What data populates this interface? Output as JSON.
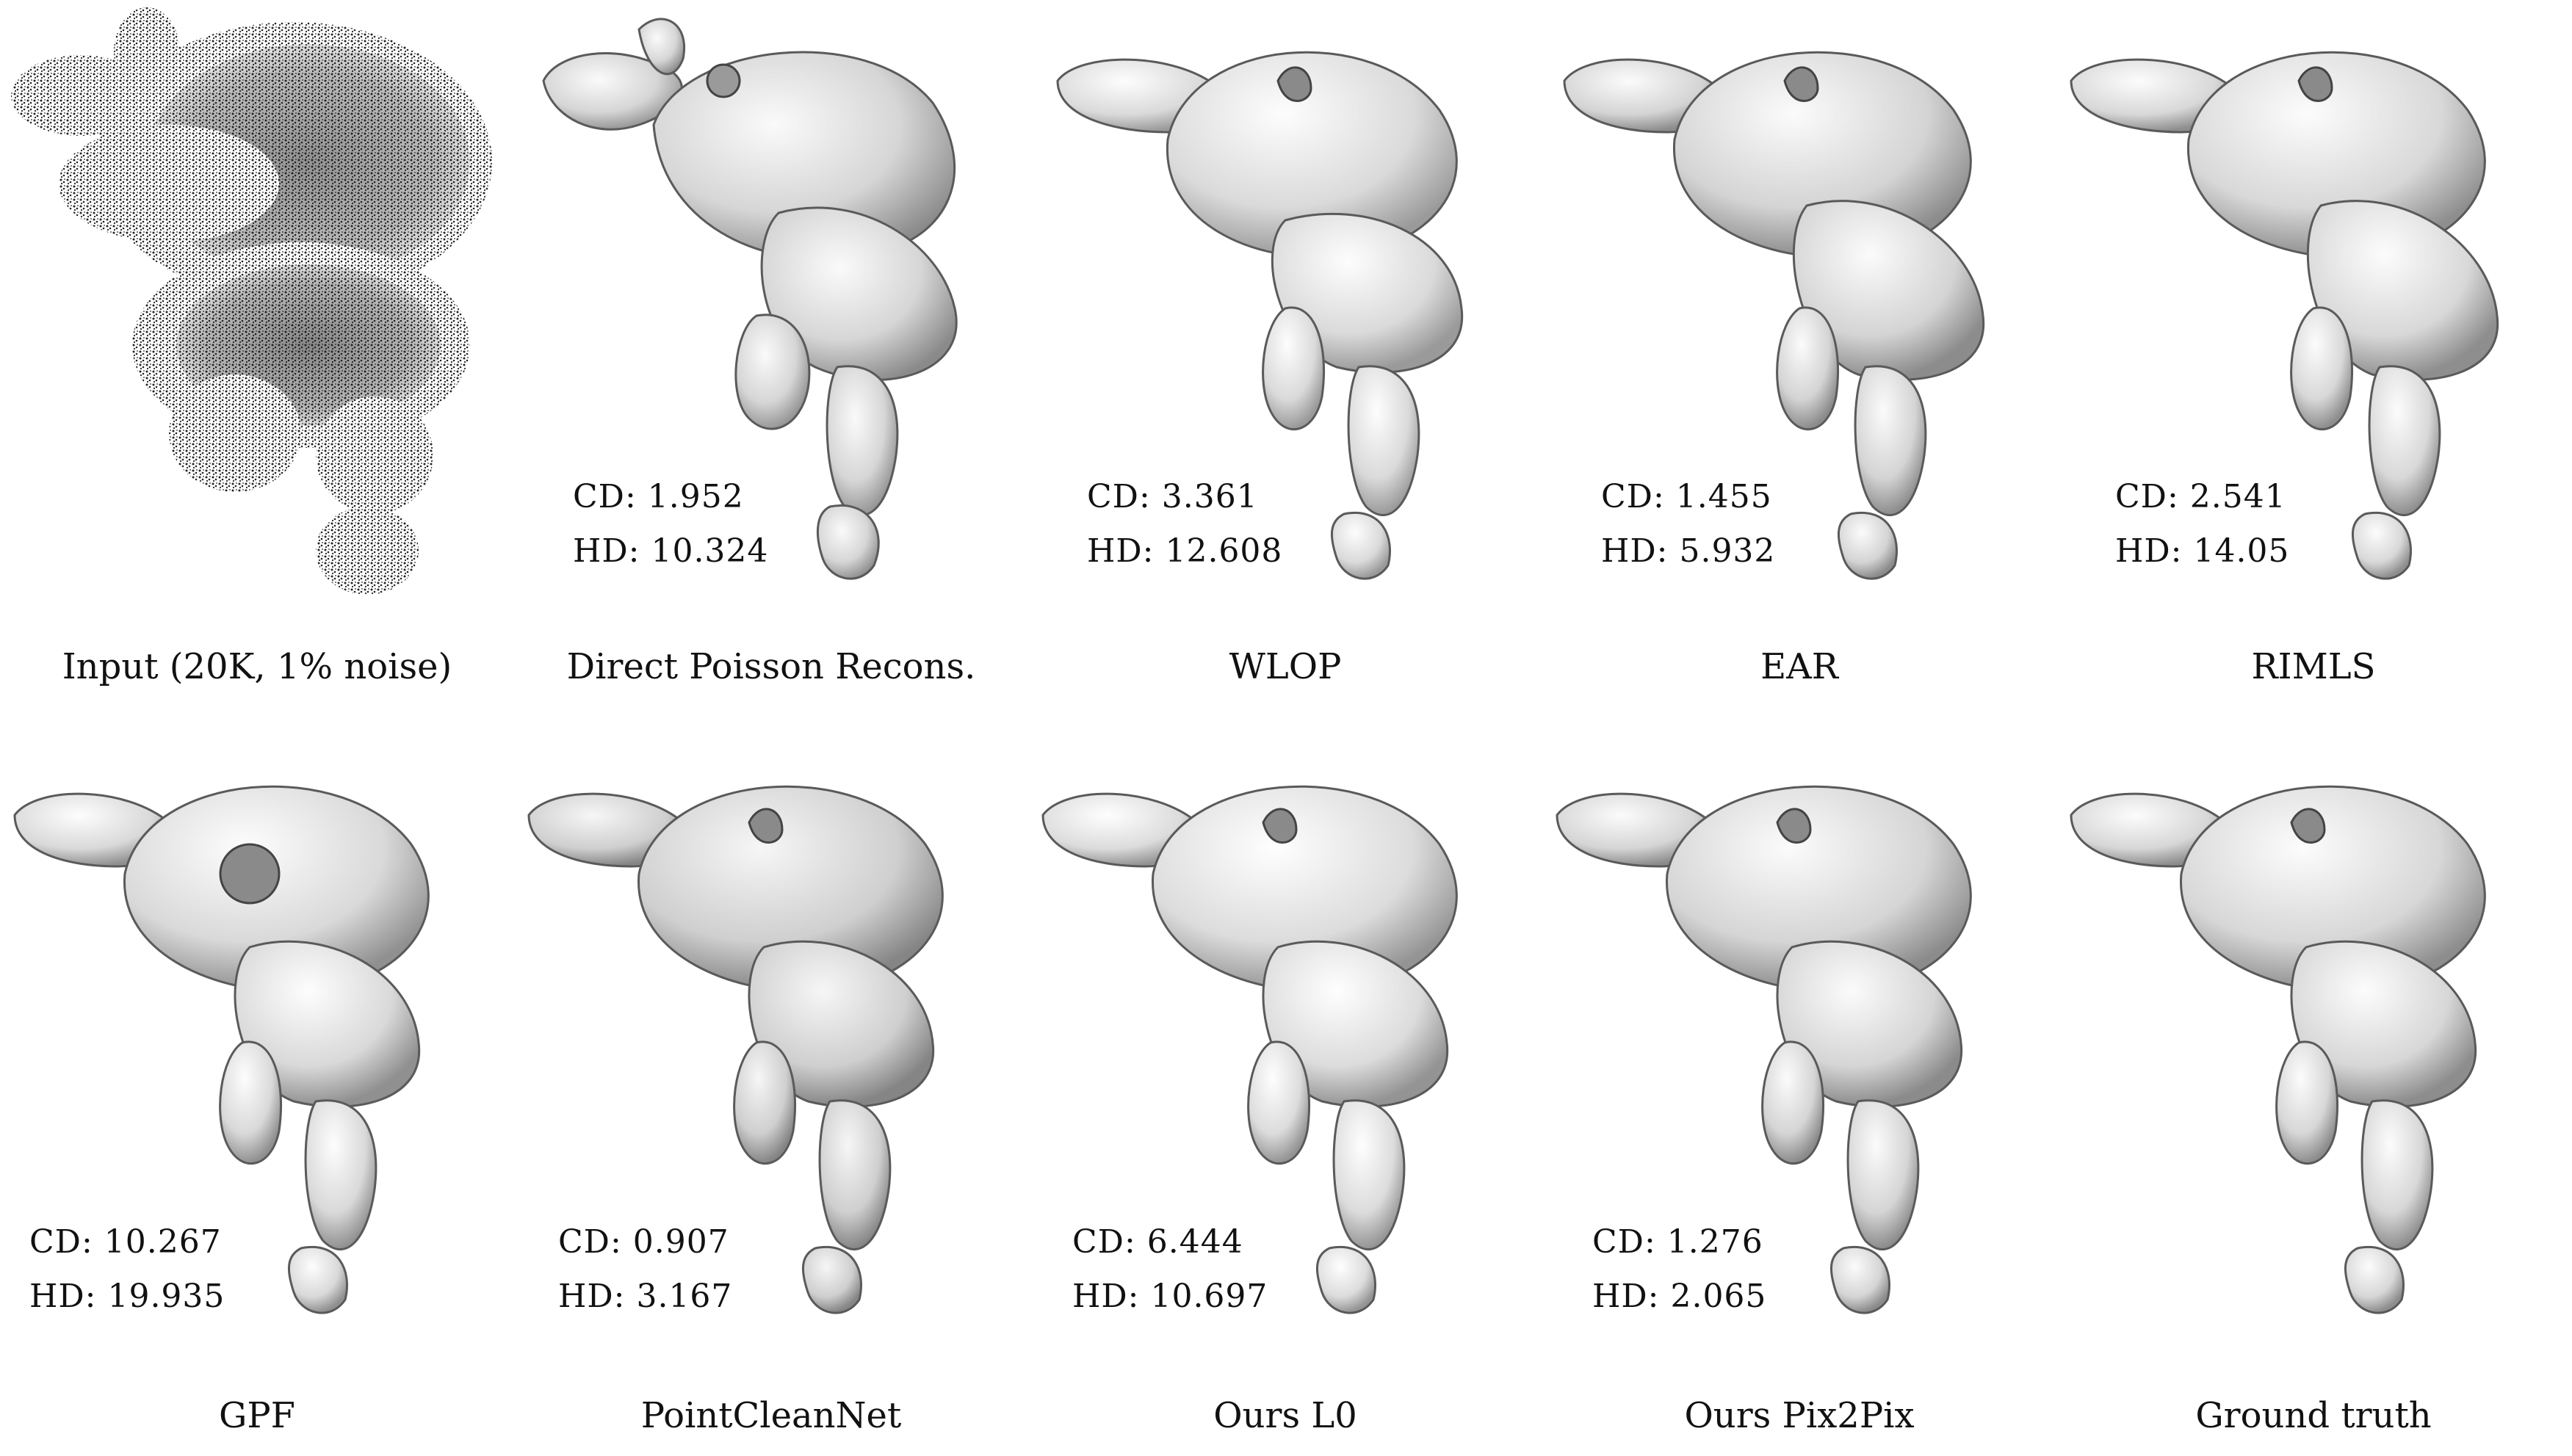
{
  "panels": [
    {
      "caption": "Input (20K, 1% noise)",
      "cd": "",
      "hd": ""
    },
    {
      "caption": "Direct Poisson Recons.",
      "cd": "CD: 1.952",
      "hd": "HD: 10.324"
    },
    {
      "caption": "WLOP",
      "cd": "CD: 3.361",
      "hd": "HD: 12.608"
    },
    {
      "caption": "EAR",
      "cd": "CD: 1.455",
      "hd": "HD: 5.932"
    },
    {
      "caption": "RIMLS",
      "cd": "CD: 2.541",
      "hd": "HD: 14.05"
    },
    {
      "caption": "GPF",
      "cd": "CD: 10.267",
      "hd": "HD: 19.935"
    },
    {
      "caption": "PointCleanNet",
      "cd": "CD: 0.907",
      "hd": "HD: 3.167"
    },
    {
      "caption": "Ours L0",
      "cd": "CD: 6.444",
      "hd": "HD: 10.697"
    },
    {
      "caption": "Ours Pix2Pix",
      "cd": "CD: 1.276",
      "hd": "HD: 2.065"
    },
    {
      "caption": "Ground truth",
      "cd": "",
      "hd": ""
    }
  ],
  "colors": {
    "background": "#ffffff",
    "mesh_light": "#f2f2f2",
    "mesh_mid": "#c9c9c9",
    "mesh_dark": "#6e6e6e",
    "point_cloud": "#111111",
    "text": "#111111"
  }
}
